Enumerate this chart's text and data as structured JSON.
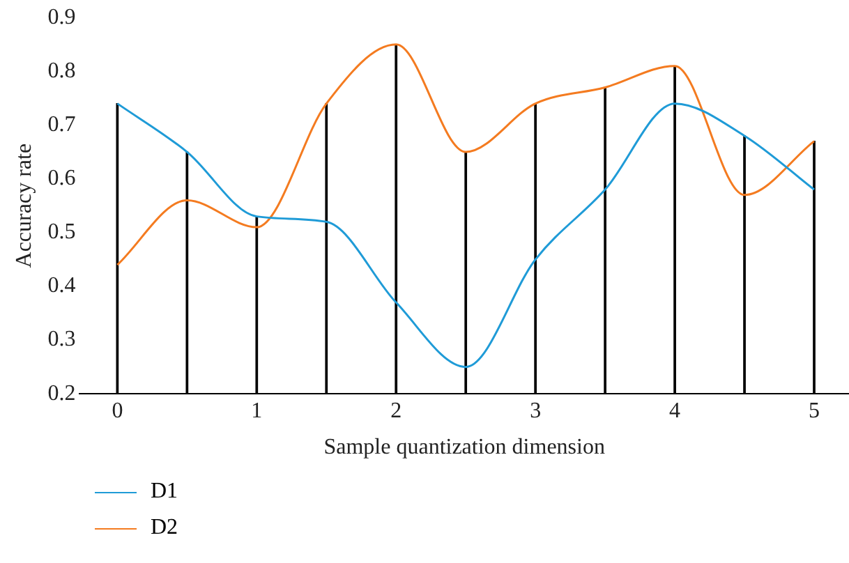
{
  "chart_data": {
    "type": "line",
    "xlabel": "Sample quantization dimension",
    "ylabel": "Accuracy rate",
    "x": [
      0,
      0.5,
      1,
      1.5,
      2,
      2.5,
      3,
      3.5,
      4,
      4.5,
      5
    ],
    "series": [
      {
        "name": "D1",
        "color": "#1f9bd7",
        "values": [
          0.74,
          0.65,
          0.53,
          0.52,
          0.37,
          0.25,
          0.45,
          0.58,
          0.74,
          0.68,
          0.58
        ]
      },
      {
        "name": "D2",
        "color": "#f47b20",
        "values": [
          0.44,
          0.56,
          0.51,
          0.74,
          0.85,
          0.65,
          0.74,
          0.77,
          0.81,
          0.57,
          0.67
        ]
      },
      {
        "type": "bar",
        "color": "#000000",
        "values": [
          0.74,
          0.65,
          0.53,
          0.74,
          0.85,
          0.65,
          0.74,
          0.77,
          0.81,
          0.68,
          0.67
        ]
      }
    ],
    "xlim": [
      -0.27,
      5.25
    ],
    "xticks": [
      0,
      1,
      2,
      3,
      4,
      5
    ],
    "ylim": [
      0.2,
      0.9
    ],
    "yticks": [
      0.2,
      0.3,
      0.4,
      0.5,
      0.6,
      0.7,
      0.8,
      0.9
    ],
    "grid": false,
    "legend": "bottom left",
    "marker": "none",
    "line_style": "solid"
  }
}
